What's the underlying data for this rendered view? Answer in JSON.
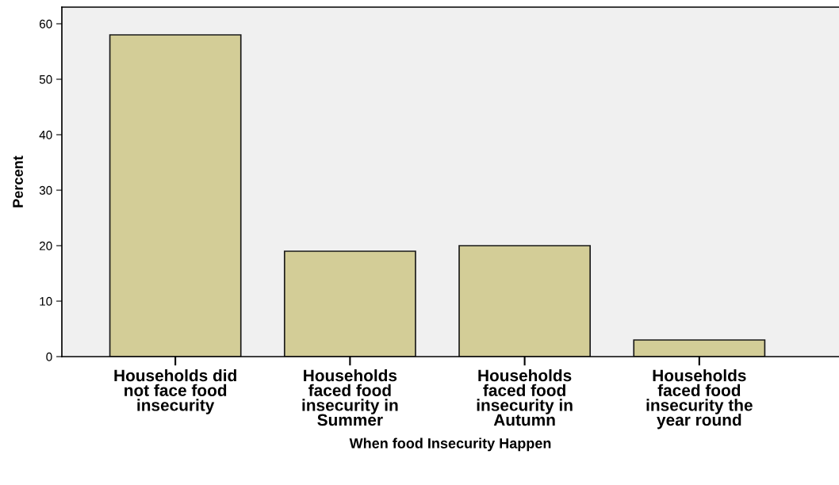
{
  "chart_data": {
    "type": "bar",
    "xlabel": "When food Insecurity Happen",
    "ylabel": "Percent",
    "categories": [
      "Households did\nnot face food\ninsecurity",
      "Households\nfaced food\ninsecurity in\nSummer",
      "Households\nfaced food\ninsecurity in\nAutumn",
      "Households\nfaced food\ninsecurity the\nyear round"
    ],
    "values": [
      58,
      19,
      20,
      3
    ],
    "color": "#d3cd97",
    "ylim": [
      0,
      63
    ],
    "yticks": [
      0,
      10,
      20,
      30,
      40,
      50,
      60
    ],
    "grid": false
  }
}
